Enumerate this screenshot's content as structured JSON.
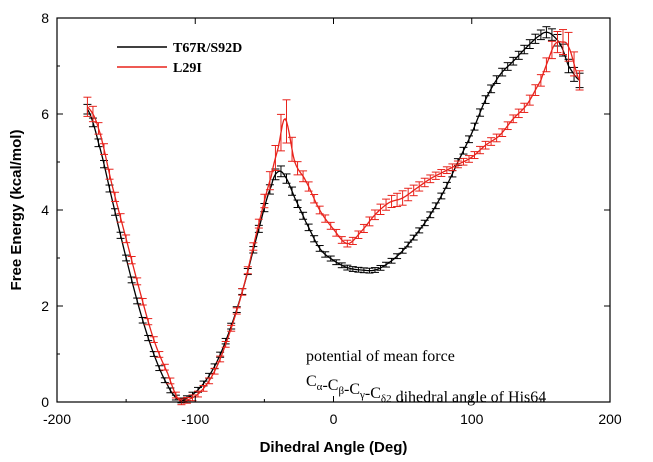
{
  "chart_data": {
    "type": "line",
    "title": "",
    "xlabel": "Dihedral Angle (Deg)",
    "ylabel": "Free  Energy (kcal/mol)",
    "xlim": [
      -200,
      200
    ],
    "ylim": [
      0,
      8
    ],
    "xticks": [
      -200,
      -100,
      0,
      100,
      200
    ],
    "yticks": [
      0,
      2,
      4,
      6,
      8
    ],
    "grid": false,
    "legend_position": "top-left",
    "error_bars": true,
    "annotation": {
      "line1": "potential of mean force",
      "line2_parts": [
        {
          "t": "C",
          "sub": "α"
        },
        {
          "t": "-C",
          "sub": "β"
        },
        {
          "t": "-C",
          "sub": "γ"
        },
        {
          "t": "-C",
          "sub": "δ2"
        },
        {
          "t": " dihedral angle of His64",
          "sub": ""
        }
      ]
    },
    "series": [
      {
        "name": "T67R/S92D",
        "color": "#000000",
        "x": [
          -178,
          -170,
          -160,
          -150,
          -140,
          -130,
          -120,
          -112,
          -105,
          -95,
          -85,
          -75,
          -65,
          -55,
          -45,
          -40,
          -35,
          -28,
          -20,
          -10,
          0,
          10,
          20,
          30,
          40,
          50,
          60,
          70,
          80,
          90,
          100,
          110,
          120,
          130,
          140,
          150,
          155,
          160,
          165,
          170,
          178
        ],
        "y": [
          6.1,
          5.4,
          4.2,
          3.0,
          1.9,
          1.0,
          0.35,
          0.05,
          0.1,
          0.35,
          0.8,
          1.5,
          2.4,
          3.5,
          4.5,
          4.8,
          4.7,
          4.25,
          3.75,
          3.2,
          2.95,
          2.8,
          2.75,
          2.75,
          2.9,
          3.15,
          3.5,
          3.9,
          4.4,
          5.0,
          5.6,
          6.3,
          6.8,
          7.1,
          7.4,
          7.65,
          7.7,
          7.6,
          7.4,
          7.0,
          6.7
        ],
        "err": [
          0.1,
          0.08,
          0.07,
          0.06,
          0.06,
          0.05,
          0.05,
          0.05,
          0.05,
          0.05,
          0.05,
          0.06,
          0.06,
          0.07,
          0.1,
          0.12,
          0.1,
          0.08,
          0.07,
          0.06,
          0.05,
          0.05,
          0.05,
          0.05,
          0.05,
          0.05,
          0.05,
          0.06,
          0.06,
          0.07,
          0.07,
          0.08,
          0.08,
          0.08,
          0.09,
          0.1,
          0.12,
          0.12,
          0.12,
          0.14,
          0.15
        ]
      },
      {
        "name": "L29I",
        "color": "#e8231c",
        "x": [
          -178,
          -170,
          -160,
          -150,
          -140,
          -130,
          -120,
          -112,
          -105,
          -95,
          -85,
          -75,
          -65,
          -55,
          -45,
          -40,
          -35,
          -28,
          -20,
          -10,
          0,
          10,
          20,
          30,
          40,
          50,
          60,
          70,
          80,
          90,
          100,
          110,
          120,
          130,
          140,
          150,
          155,
          160,
          165,
          170,
          178
        ],
        "y": [
          6.15,
          5.7,
          4.5,
          3.4,
          2.3,
          1.3,
          0.6,
          0.05,
          0.05,
          0.25,
          0.7,
          1.45,
          2.4,
          3.6,
          4.7,
          5.3,
          5.9,
          5.0,
          4.6,
          4.0,
          3.6,
          3.3,
          3.55,
          3.9,
          4.15,
          4.25,
          4.45,
          4.65,
          4.8,
          4.95,
          5.1,
          5.35,
          5.55,
          5.9,
          6.2,
          6.7,
          7.1,
          7.45,
          7.5,
          7.4,
          6.7
        ],
        "err": [
          0.2,
          0.12,
          0.1,
          0.08,
          0.07,
          0.06,
          0.06,
          0.06,
          0.06,
          0.06,
          0.06,
          0.06,
          0.07,
          0.08,
          0.2,
          0.3,
          0.5,
          0.15,
          0.1,
          0.08,
          0.07,
          0.07,
          0.08,
          0.1,
          0.12,
          0.15,
          0.1,
          0.08,
          0.07,
          0.07,
          0.07,
          0.08,
          0.08,
          0.08,
          0.1,
          0.12,
          0.15,
          0.2,
          0.25,
          0.3,
          0.2
        ]
      }
    ]
  }
}
